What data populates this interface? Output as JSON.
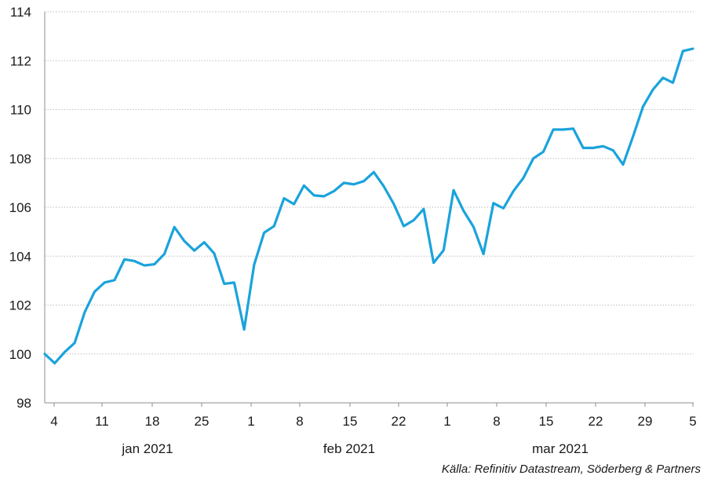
{
  "chart_data": {
    "type": "line",
    "x_tick_labels": [
      "4",
      "11",
      "18",
      "25",
      "1",
      "8",
      "15",
      "22",
      "1",
      "8",
      "15",
      "22",
      "29",
      "5"
    ],
    "month_labels": [
      "jan 2021",
      "feb 2021",
      "mar 2021"
    ],
    "ylim": [
      98,
      114
    ],
    "y_ticks": [
      98,
      100,
      102,
      104,
      106,
      108,
      110,
      112,
      114
    ],
    "grid": true,
    "series": [
      {
        "color": "#1aa3dc",
        "x": [
          "2021-01-04",
          "2021-01-05",
          "2021-01-06",
          "2021-01-07",
          "2021-01-08",
          "2021-01-11",
          "2021-01-12",
          "2021-01-13",
          "2021-01-14",
          "2021-01-15",
          "2021-01-18",
          "2021-01-19",
          "2021-01-20",
          "2021-01-21",
          "2021-01-22",
          "2021-01-25",
          "2021-01-26",
          "2021-01-27",
          "2021-01-28",
          "2021-01-29",
          "2021-02-01",
          "2021-02-02",
          "2021-02-03",
          "2021-02-04",
          "2021-02-05",
          "2021-02-08",
          "2021-02-09",
          "2021-02-10",
          "2021-02-11",
          "2021-02-12",
          "2021-02-15",
          "2021-02-16",
          "2021-02-17",
          "2021-02-18",
          "2021-02-19",
          "2021-02-22",
          "2021-02-23",
          "2021-02-24",
          "2021-02-25",
          "2021-02-26",
          "2021-03-01",
          "2021-03-02",
          "2021-03-03",
          "2021-03-04",
          "2021-03-05",
          "2021-03-08",
          "2021-03-09",
          "2021-03-10",
          "2021-03-11",
          "2021-03-12",
          "2021-03-15",
          "2021-03-16",
          "2021-03-17",
          "2021-03-18",
          "2021-03-19",
          "2021-03-22",
          "2021-03-23",
          "2021-03-24",
          "2021-03-25",
          "2021-03-26",
          "2021-03-29",
          "2021-03-30",
          "2021-03-31",
          "2021-04-01",
          "2021-04-02",
          "2021-04-05"
        ],
        "values": [
          100.0,
          99.62,
          100.08,
          100.45,
          101.7,
          102.55,
          102.92,
          103.02,
          103.87,
          103.8,
          103.62,
          103.67,
          104.09,
          105.19,
          104.62,
          104.23,
          104.57,
          104.11,
          102.87,
          102.92,
          101.0,
          103.65,
          104.96,
          105.23,
          106.37,
          106.13,
          106.89,
          106.49,
          106.45,
          106.66,
          107.0,
          106.94,
          107.07,
          107.44,
          106.86,
          106.14,
          105.23,
          105.47,
          105.93,
          103.73,
          104.24,
          106.7,
          105.86,
          105.2,
          104.09,
          106.17,
          105.96,
          106.66,
          107.2,
          108.0,
          108.27,
          109.18,
          109.18,
          109.22,
          108.43,
          108.43,
          108.5,
          108.33,
          107.75,
          108.9,
          110.12,
          110.82,
          111.3,
          111.1,
          112.39,
          112.49
        ]
      }
    ]
  },
  "source_text": "Källa: Refinitiv Datastream, Söderberg & Partners"
}
